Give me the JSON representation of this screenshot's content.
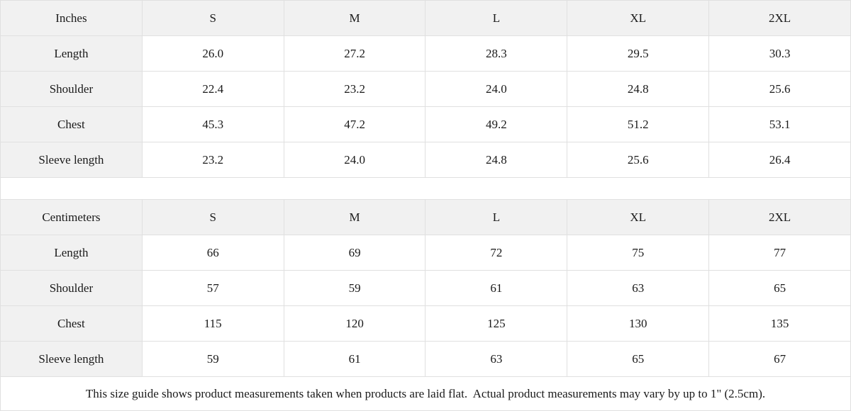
{
  "colors": {
    "header_background": "#f1f1f1",
    "cell_background": "#ffffff",
    "border": "#e0e0e0",
    "text": "#1a1a1a"
  },
  "chart_data": [
    {
      "type": "table",
      "unit_label": "Inches",
      "columns": [
        "S",
        "M",
        "L",
        "XL",
        "2XL"
      ],
      "rows": [
        {
          "label": "Length",
          "values": [
            "26.0",
            "27.2",
            "28.3",
            "29.5",
            "30.3"
          ]
        },
        {
          "label": "Shoulder",
          "values": [
            "22.4",
            "23.2",
            "24.0",
            "24.8",
            "25.6"
          ]
        },
        {
          "label": "Chest",
          "values": [
            "45.3",
            "47.2",
            "49.2",
            "51.2",
            "53.1"
          ]
        },
        {
          "label": "Sleeve length",
          "values": [
            "23.2",
            "24.0",
            "24.8",
            "25.6",
            "26.4"
          ]
        }
      ]
    },
    {
      "type": "table",
      "unit_label": "Centimeters",
      "columns": [
        "S",
        "M",
        "L",
        "XL",
        "2XL"
      ],
      "rows": [
        {
          "label": "Length",
          "values": [
            "66",
            "69",
            "72",
            "75",
            "77"
          ]
        },
        {
          "label": "Shoulder",
          "values": [
            "57",
            "59",
            "61",
            "63",
            "65"
          ]
        },
        {
          "label": "Chest",
          "values": [
            "115",
            "120",
            "125",
            "130",
            "135"
          ]
        },
        {
          "label": "Sleeve length",
          "values": [
            "59",
            "61",
            "63",
            "65",
            "67"
          ]
        }
      ]
    }
  ],
  "footer": {
    "note": "This size guide shows product measurements taken when products are laid flat.  Actual product measurements may vary by up to 1\" (2.5cm)."
  }
}
